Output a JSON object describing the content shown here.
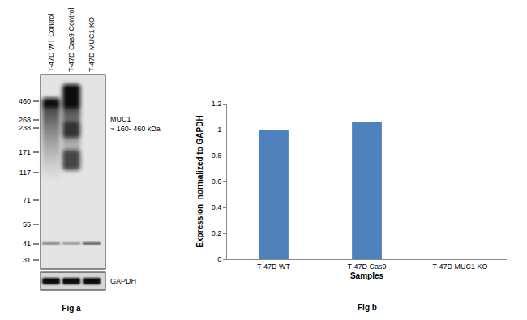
{
  "chart_data": {
    "type": "bar",
    "categories": [
      "T-47D WT",
      "T-47D Cas9",
      "T-47D MUC1 KO"
    ],
    "values": [
      1,
      1.06,
      0
    ],
    "color": "#4f81bd",
    "x_label": "Samples",
    "y_label": "Expression  normalized to GAPDH",
    "ylim": [
      0,
      1.2
    ],
    "yticks": [
      0,
      0.2,
      0.4,
      0.6,
      0.8,
      1,
      1.2
    ],
    "grid": false,
    "caption": "Fig b"
  },
  "blot": {
    "lanes": [
      "T-47D WT Control",
      "T-47D Cas9 Control",
      "T-47D MUC1 KO"
    ],
    "markers": [
      460,
      268,
      238,
      171,
      117,
      71,
      55,
      41,
      31
    ],
    "target": "MUC1",
    "target_size": "~ 160- 460 kDa",
    "loading_control": "GAPDH",
    "caption": "Fig a"
  }
}
